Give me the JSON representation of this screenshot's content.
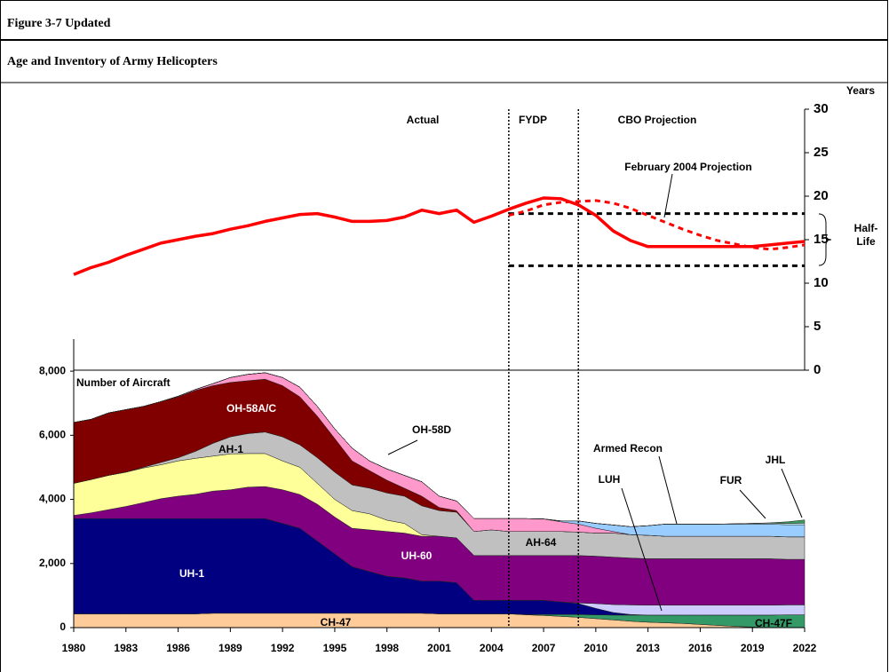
{
  "figure_label": "Figure 3-7 Updated",
  "title": "Age and Inventory of Army Helicopters",
  "chart_data": [
    {
      "type": "area",
      "y_label": "Number of Aircraft",
      "x": [
        1980,
        1981,
        1982,
        1983,
        1984,
        1985,
        1986,
        1987,
        1988,
        1989,
        1990,
        1991,
        1992,
        1993,
        1994,
        1995,
        1996,
        1997,
        1998,
        1999,
        2000,
        2001,
        2002,
        2003,
        2004,
        2005,
        2006,
        2007,
        2008,
        2009,
        2010,
        2011,
        2012,
        2013,
        2014,
        2015,
        2016,
        2017,
        2018,
        2019,
        2020,
        2021,
        2022
      ],
      "xlim": [
        1980,
        2022
      ],
      "xticks": [
        1980,
        1983,
        1986,
        1989,
        1992,
        1995,
        1998,
        2001,
        2004,
        2007,
        2010,
        2013,
        2016,
        2019,
        2022
      ],
      "ylim": [
        0,
        9000
      ],
      "yticks": [
        0,
        {
          "value": 2000,
          "label": "2,000"
        },
        {
          "value": 4000,
          "label": "4,000"
        },
        {
          "value": 6000,
          "label": "6,000"
        },
        {
          "value": 8000,
          "label": "8,000"
        }
      ],
      "stacked": true,
      "series": [
        {
          "name": "CH-47",
          "color": "#ffcc99",
          "values": [
            430,
            430,
            430,
            430,
            430,
            430,
            430,
            430,
            450,
            450,
            450,
            450,
            450,
            450,
            450,
            450,
            450,
            450,
            450,
            450,
            450,
            430,
            430,
            430,
            430,
            430,
            400,
            380,
            350,
            320,
            280,
            240,
            200,
            170,
            150,
            130,
            100,
            70,
            40,
            20,
            0,
            0,
            0
          ]
        },
        {
          "name": "CH-47F",
          "color": "#339966",
          "values": [
            0,
            0,
            0,
            0,
            0,
            0,
            0,
            0,
            0,
            0,
            0,
            0,
            0,
            0,
            0,
            0,
            0,
            0,
            0,
            0,
            0,
            0,
            0,
            0,
            0,
            0,
            10,
            30,
            60,
            90,
            120,
            150,
            190,
            220,
            240,
            260,
            290,
            320,
            350,
            370,
            390,
            400,
            400
          ]
        },
        {
          "name": "UH-1",
          "color": "#000080",
          "values": [
            2970,
            2970,
            2970,
            2970,
            2970,
            2970,
            2970,
            2970,
            2950,
            2950,
            2950,
            2950,
            2800,
            2650,
            2250,
            1850,
            1450,
            1300,
            1150,
            1100,
            1000,
            1020,
            970,
            420,
            420,
            420,
            440,
            440,
            390,
            340,
            200,
            80,
            20,
            0,
            0,
            0,
            0,
            0,
            0,
            0,
            0,
            0,
            0
          ]
        },
        {
          "name": "LUH",
          "color": "#ccccff",
          "values": [
            0,
            0,
            0,
            0,
            0,
            0,
            0,
            0,
            0,
            0,
            0,
            0,
            0,
            0,
            0,
            0,
            0,
            0,
            0,
            0,
            0,
            0,
            0,
            0,
            0,
            0,
            0,
            0,
            0,
            20,
            150,
            250,
            300,
            310,
            310,
            310,
            310,
            310,
            310,
            310,
            310,
            310,
            310
          ]
        },
        {
          "name": "UH-60",
          "color": "#800080",
          "values": [
            100,
            180,
            280,
            380,
            500,
            620,
            700,
            760,
            860,
            900,
            980,
            1000,
            1050,
            1050,
            1150,
            1150,
            1200,
            1300,
            1400,
            1400,
            1400,
            1400,
            1400,
            1400,
            1400,
            1400,
            1400,
            1400,
            1450,
            1480,
            1480,
            1480,
            1460,
            1450,
            1450,
            1450,
            1450,
            1450,
            1450,
            1450,
            1450,
            1420,
            1420
          ]
        },
        {
          "name": "AH-1",
          "color": "#ffff99",
          "values": [
            1000,
            1040,
            1070,
            1070,
            1080,
            1060,
            1100,
            1120,
            1090,
            1120,
            1050,
            1030,
            900,
            850,
            650,
            550,
            550,
            500,
            350,
            300,
            50,
            0,
            0,
            0,
            0,
            0,
            0,
            0,
            0,
            0,
            0,
            0,
            0,
            0,
            0,
            0,
            0,
            0,
            0,
            0,
            0,
            0,
            0
          ]
        },
        {
          "name": "AH-64",
          "color": "#c0c0c0",
          "values": [
            0,
            0,
            0,
            0,
            20,
            70,
            100,
            220,
            400,
            530,
            620,
            670,
            750,
            700,
            800,
            850,
            800,
            800,
            850,
            850,
            900,
            800,
            800,
            750,
            800,
            750,
            750,
            750,
            750,
            730,
            720,
            750,
            730,
            730,
            700,
            700,
            700,
            700,
            700,
            700,
            700,
            700,
            700
          ]
        },
        {
          "name": "OH-58A/C",
          "color": "#800000",
          "values": [
            1900,
            1880,
            1950,
            1950,
            1900,
            1900,
            1900,
            1900,
            1800,
            1700,
            1650,
            1650,
            1600,
            1500,
            1300,
            1050,
            750,
            550,
            400,
            250,
            300,
            100,
            50,
            0,
            0,
            0,
            0,
            0,
            0,
            0,
            0,
            0,
            0,
            0,
            0,
            0,
            0,
            0,
            0,
            0,
            0,
            0,
            0
          ]
        },
        {
          "name": "OH-58D",
          "color": "#ff99cc",
          "values": [
            0,
            0,
            0,
            0,
            0,
            0,
            20,
            30,
            60,
            150,
            200,
            200,
            250,
            300,
            300,
            300,
            400,
            300,
            350,
            400,
            450,
            350,
            300,
            400,
            350,
            400,
            400,
            390,
            300,
            250,
            150,
            50,
            0,
            0,
            0,
            0,
            0,
            0,
            0,
            0,
            0,
            0,
            0
          ]
        },
        {
          "name": "Armed Recon",
          "color": "#99ccff",
          "values": [
            0,
            0,
            0,
            0,
            0,
            0,
            0,
            0,
            0,
            0,
            0,
            0,
            0,
            0,
            0,
            0,
            0,
            0,
            0,
            0,
            0,
            0,
            0,
            0,
            0,
            0,
            0,
            0,
            30,
            100,
            150,
            200,
            250,
            300,
            380,
            380,
            380,
            380,
            380,
            380,
            380,
            380,
            380
          ]
        },
        {
          "name": "FUR",
          "color": "#ccffff",
          "values": [
            0,
            0,
            0,
            0,
            0,
            0,
            0,
            0,
            0,
            0,
            0,
            0,
            0,
            0,
            0,
            0,
            0,
            0,
            0,
            0,
            0,
            0,
            0,
            0,
            0,
            0,
            0,
            0,
            0,
            0,
            0,
            0,
            0,
            0,
            0,
            0,
            0,
            0,
            10,
            20,
            30,
            40,
            50
          ]
        },
        {
          "name": "JHL",
          "color": "#3c9a5f",
          "values": [
            0,
            0,
            0,
            0,
            0,
            0,
            0,
            0,
            0,
            0,
            0,
            0,
            0,
            0,
            0,
            0,
            0,
            0,
            0,
            0,
            0,
            0,
            0,
            0,
            0,
            0,
            0,
            0,
            0,
            0,
            0,
            0,
            0,
            0,
            0,
            0,
            0,
            0,
            0,
            0,
            10,
            50,
            100
          ]
        }
      ]
    },
    {
      "type": "line",
      "y_label": "Years",
      "x": [
        1980,
        1981,
        1982,
        1983,
        1984,
        1985,
        1986,
        1987,
        1988,
        1989,
        1990,
        1991,
        1992,
        1993,
        1994,
        1995,
        1996,
        1997,
        1998,
        1999,
        2000,
        2001,
        2002,
        2003,
        2004,
        2005,
        2006,
        2007,
        2008,
        2009,
        2010,
        2011,
        2012,
        2013,
        2014,
        2015,
        2016,
        2017,
        2018,
        2019,
        2020,
        2021,
        2022
      ],
      "xlim": [
        1980,
        2022
      ],
      "ylim": [
        0,
        30
      ],
      "yticks": [
        0,
        5,
        10,
        15,
        20,
        25,
        30
      ],
      "periods": [
        "Actual",
        "FYDP",
        "CBO Projection"
      ],
      "period_boundaries": [
        2005,
        2009
      ],
      "reference_lines": [
        12,
        18
      ],
      "reference_label": "Half-Life",
      "series": [
        {
          "color": "#ff0000",
          "values": [
            11,
            11.8,
            12.4,
            13.2,
            13.9,
            14.6,
            15,
            15.4,
            15.7,
            16.2,
            16.6,
            17.1,
            17.5,
            17.9,
            18,
            17.6,
            17.1,
            17.1,
            17.2,
            17.6,
            18.4,
            18,
            18.4,
            17,
            17.7,
            18.5,
            19.2,
            19.8,
            19.7,
            19,
            17.8,
            16,
            14.9,
            14.2,
            14.2,
            14.2,
            14.2,
            14.2,
            14.2,
            14.2,
            14.4,
            14.6,
            14.8
          ]
        },
        {
          "name": "February 2004 Projection",
          "color": "#ff0000",
          "dashed": true,
          "values": [
            null,
            null,
            null,
            null,
            null,
            null,
            null,
            null,
            null,
            null,
            null,
            null,
            null,
            null,
            null,
            null,
            null,
            null,
            null,
            null,
            null,
            null,
            null,
            null,
            null,
            17.8,
            18.3,
            19,
            19.3,
            19.4,
            19.5,
            19.2,
            18.6,
            17.8,
            17,
            16.2,
            15.5,
            14.9,
            14.5,
            14.1,
            13.9,
            14.1,
            14.4
          ]
        }
      ]
    }
  ]
}
